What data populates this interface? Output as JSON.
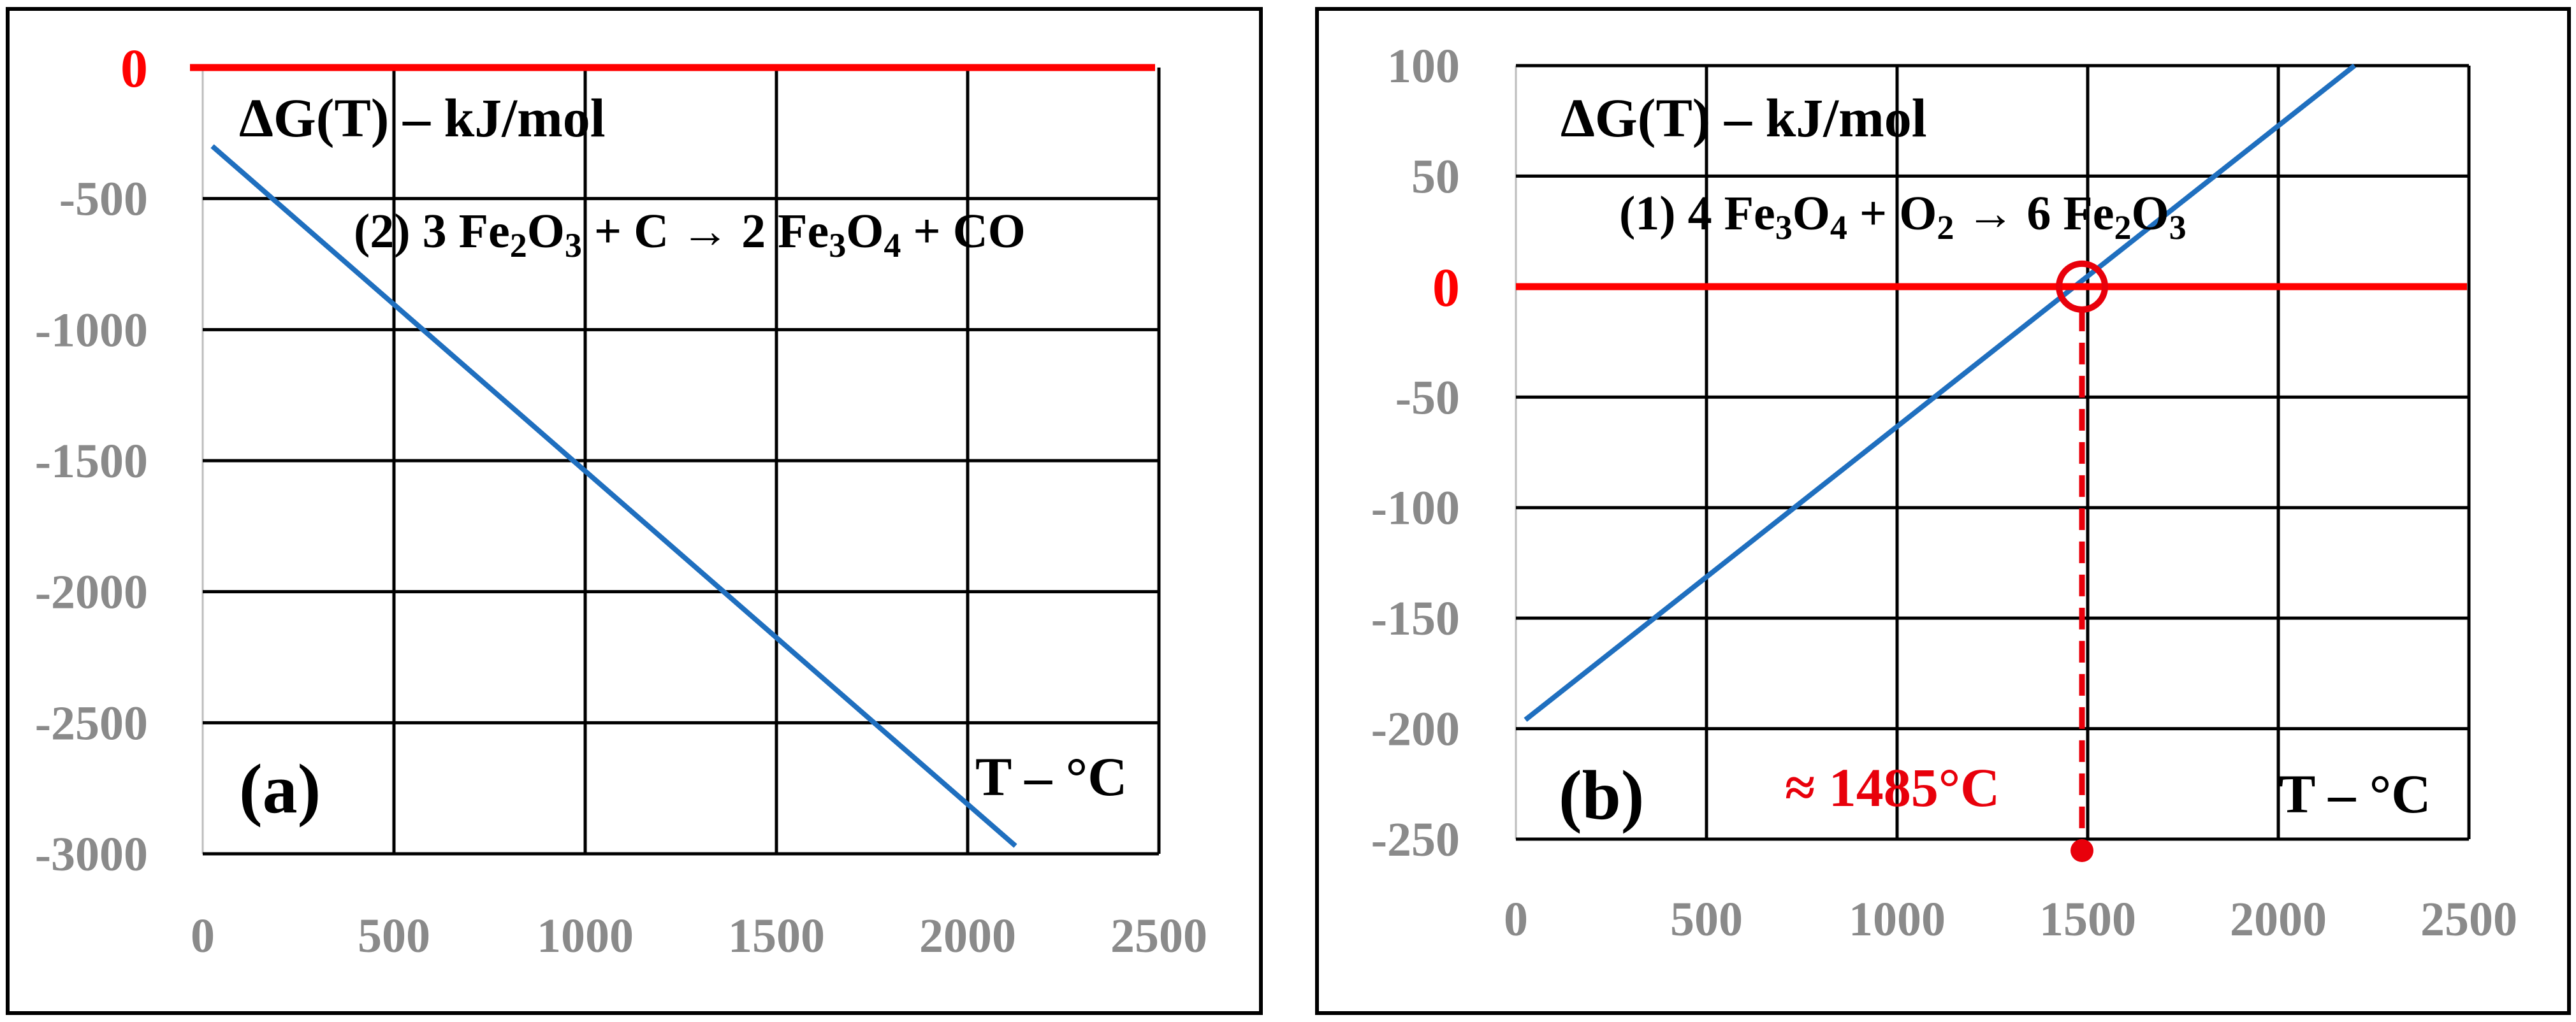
{
  "colors": {
    "series": "#1f6fbf",
    "zero_line": "#ff0000",
    "annotation": "#e8000b",
    "grid": "#000000",
    "tick": "#8a8a8a",
    "frame": "#000000"
  },
  "chart_data": [
    {
      "panel_label": "(a)",
      "type": "line",
      "ylabel": "ΔG(T) – kJ/mol",
      "xlabel": "T – °C",
      "annotation": {
        "prefix": "(2) 3 Fe",
        "parts": [
          "2",
          "O",
          "3",
          " + C ",
          "→",
          " 2 Fe",
          "3",
          "O",
          "4",
          " + CO"
        ]
      },
      "xlim": [
        0,
        2500
      ],
      "ylim": [
        -3000,
        0
      ],
      "x_ticks": [
        0,
        500,
        1000,
        1500,
        2000,
        2500
      ],
      "y_ticks": [
        0,
        -500,
        -1000,
        -1500,
        -2000,
        -2500,
        -3000
      ],
      "x_tick_labels": [
        "0",
        "500",
        "1000",
        "1500",
        "2000",
        "2500"
      ],
      "y_tick_labels": [
        "0",
        "-500",
        "-1000",
        "-1500",
        "-2000",
        "-2500",
        "-3000"
      ],
      "grid": true,
      "series": [
        {
          "x": [
            25,
            2125
          ],
          "y": [
            -300,
            -2970
          ]
        }
      ],
      "reference_line": {
        "y": 0
      }
    },
    {
      "panel_label": "(b)",
      "type": "line",
      "ylabel": "ΔG(T) – kJ/mol",
      "xlabel": "T – °C",
      "annotation": {
        "prefix": "(1) 4 Fe",
        "parts": [
          "3",
          "O",
          "4",
          " + O",
          "2",
          " ",
          "→",
          " 6 Fe",
          "2",
          "O",
          "3"
        ]
      },
      "xlim": [
        0,
        2500
      ],
      "ylim": [
        -250,
        100
      ],
      "x_ticks": [
        0,
        500,
        1000,
        1500,
        2000,
        2500
      ],
      "y_ticks": [
        100,
        50,
        0,
        -50,
        -100,
        -150,
        -200,
        -250
      ],
      "x_tick_labels": [
        "0",
        "500",
        "1000",
        "1500",
        "2000",
        "2500"
      ],
      "y_tick_labels": [
        "100",
        "50",
        "0",
        "-50",
        "-100",
        "-150",
        "-200",
        "-250"
      ],
      "grid": true,
      "series": [
        {
          "x": [
            25,
            2200
          ],
          "y": [
            -196,
            100
          ]
        }
      ],
      "reference_line": {
        "y": 0
      },
      "crossing": {
        "x": 1485,
        "y": 0,
        "label": "≈ 1485°C"
      }
    }
  ]
}
